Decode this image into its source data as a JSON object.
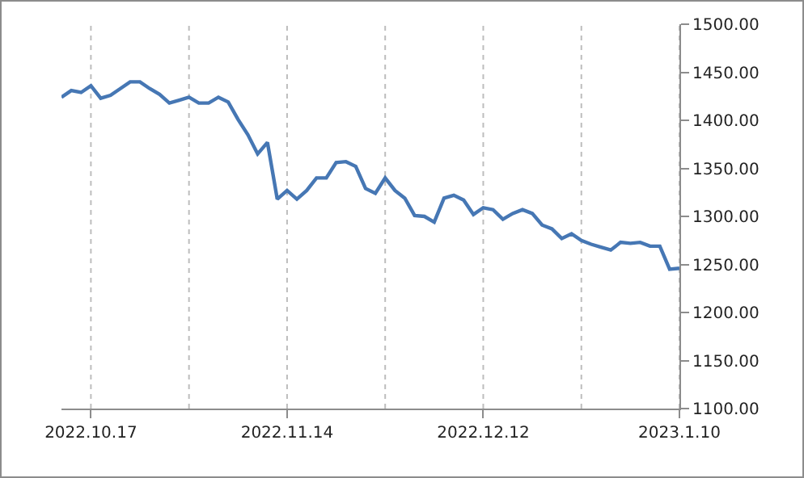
{
  "chart_data": {
    "type": "line",
    "categories": [
      null,
      null,
      null,
      "2022.10.17",
      null,
      null,
      null,
      null,
      null,
      null,
      null,
      null,
      null,
      null,
      null,
      null,
      null,
      null,
      null,
      null,
      null,
      null,
      null,
      "2022.11.14",
      null,
      null,
      null,
      null,
      null,
      null,
      null,
      null,
      null,
      null,
      null,
      null,
      null,
      null,
      null,
      null,
      null,
      null,
      null,
      "2022.12.12",
      null,
      null,
      null,
      null,
      null,
      null,
      null,
      null,
      null,
      null,
      null,
      null,
      null,
      null,
      null,
      null,
      null,
      null,
      null,
      "2023.1.10"
    ],
    "series": [
      {
        "color": "#4677b4",
        "values": [
          1424,
          1431,
          1429,
          1436,
          1423,
          1426,
          1433,
          1440,
          1440,
          1433,
          1427,
          1418,
          1421,
          1424,
          1418,
          1418,
          1424,
          1419,
          1401,
          1385,
          1365,
          1377,
          1318,
          1327,
          1318,
          1327,
          1340,
          1340,
          1356,
          1357,
          1352,
          1329,
          1324,
          1340,
          1327,
          1319,
          1301,
          1300,
          1294,
          1319,
          1322,
          1317,
          1302,
          1309,
          1307,
          1297,
          1303,
          1307,
          1303,
          1291,
          1287,
          1277,
          1282,
          1275,
          1271,
          1268,
          1265,
          1273,
          1272,
          1273,
          1269,
          1269,
          1245,
          1246
        ]
      }
    ],
    "ylim": [
      1100,
      1500
    ],
    "yticks": [
      {
        "value": 1100,
        "label": "1100.00"
      },
      {
        "value": 1150,
        "label": "1150.00"
      },
      {
        "value": 1200,
        "label": "1200.00"
      },
      {
        "value": 1250,
        "label": "1250.00"
      },
      {
        "value": 1300,
        "label": "1300.00"
      },
      {
        "value": 1350,
        "label": "1350.00"
      },
      {
        "value": 1400,
        "label": "1400.00"
      },
      {
        "value": 1450,
        "label": "1450.00"
      },
      {
        "value": 1500,
        "label": "1500.00"
      }
    ],
    "grid": "x",
    "marker": "none",
    "line_style": "solid"
  }
}
